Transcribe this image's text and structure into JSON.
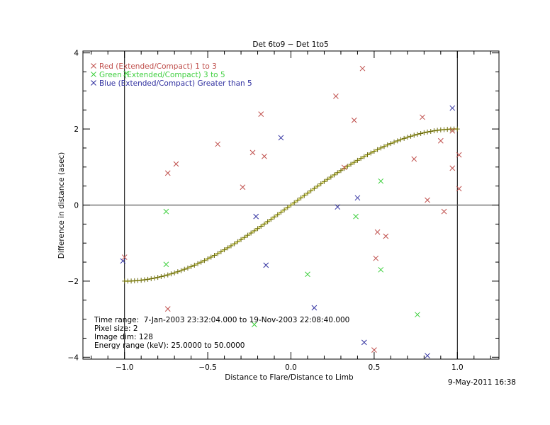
{
  "chart_data": {
    "type": "scatter",
    "title": "Det 6to9 − Det 1to5",
    "xlabel": "Distance to Flare/Distance to Limb",
    "ylabel": "Difference in distance (asec)",
    "xlim": [
      -1.25,
      1.25
    ],
    "ylim": [
      -4.05,
      4.05
    ],
    "xticks": [
      -1.0,
      -0.5,
      0.0,
      0.5,
      1.0
    ],
    "xtick_labels": [
      "−1.0",
      "−0.5",
      "0.0",
      "0.5",
      "1.0"
    ],
    "yticks": [
      -4,
      -2,
      0,
      2,
      4
    ],
    "ytick_labels": [
      "−4",
      "−2",
      "0",
      "2",
      "4"
    ],
    "grid": false,
    "legend_placement": "top-left",
    "reference_lines": {
      "x": [
        -1.0,
        1.0
      ],
      "y": [
        0
      ]
    },
    "series": [
      {
        "name": "Red (Extended/Compact) 1 to 3",
        "color": "#c0504d",
        "marker": "x",
        "points": [
          [
            -1.0,
            -1.37
          ],
          [
            -0.74,
            0.84
          ],
          [
            -0.69,
            1.08
          ],
          [
            -0.74,
            -2.73
          ],
          [
            -0.44,
            1.6
          ],
          [
            -0.29,
            0.47
          ],
          [
            -0.23,
            1.38
          ],
          [
            -0.18,
            2.39
          ],
          [
            -0.16,
            1.28
          ],
          [
            0.27,
            2.86
          ],
          [
            0.43,
            3.59
          ],
          [
            0.38,
            2.23
          ],
          [
            0.32,
            0.99
          ],
          [
            0.52,
            -0.71
          ],
          [
            0.57,
            -0.82
          ],
          [
            0.51,
            -1.4
          ],
          [
            0.5,
            -3.81
          ],
          [
            0.74,
            1.21
          ],
          [
            0.79,
            2.31
          ],
          [
            0.82,
            0.13
          ],
          [
            0.9,
            1.69
          ],
          [
            0.92,
            -0.17
          ],
          [
            0.97,
            0.97
          ],
          [
            0.97,
            1.95
          ],
          [
            1.01,
            1.32
          ],
          [
            1.01,
            0.43
          ]
        ]
      },
      {
        "name": "Green (Extended/Compact) 3 to 5",
        "color": "#40d040",
        "marker": "x",
        "points": [
          [
            -0.99,
            3.46
          ],
          [
            -0.75,
            -0.17
          ],
          [
            -0.75,
            -1.56
          ],
          [
            -0.22,
            -3.14
          ],
          [
            0.1,
            -1.82
          ],
          [
            0.39,
            -0.3
          ],
          [
            0.54,
            0.63
          ],
          [
            0.54,
            -1.7
          ],
          [
            0.76,
            -2.88
          ]
        ]
      },
      {
        "name": "Blue (Extended/Compact) Greater than 5",
        "color": "#3030a0",
        "marker": "x",
        "points": [
          [
            -1.01,
            -1.47
          ],
          [
            -0.21,
            -0.3
          ],
          [
            -0.15,
            -1.58
          ],
          [
            -0.06,
            1.77
          ],
          [
            0.14,
            -2.7
          ],
          [
            0.28,
            -0.05
          ],
          [
            0.4,
            0.19
          ],
          [
            0.44,
            -3.61
          ],
          [
            0.82,
            -3.96
          ],
          [
            0.97,
            2.55
          ]
        ]
      }
    ],
    "model_curve": {
      "function": "2*sin(pi*x/2)",
      "x_range": [
        -1,
        1
      ],
      "n_points": 101,
      "marker": "+",
      "color": "#9a9a20"
    },
    "annotations": [
      "Time range:  7-Jan-2003 23:32:04.000 to 19-Nov-2003 22:08:40.000",
      "Pixel size: 2",
      "Image dim: 128",
      "Energy range (keV): 25.0000 to 50.0000"
    ],
    "timestamp": "9-May-2011 16:38"
  }
}
